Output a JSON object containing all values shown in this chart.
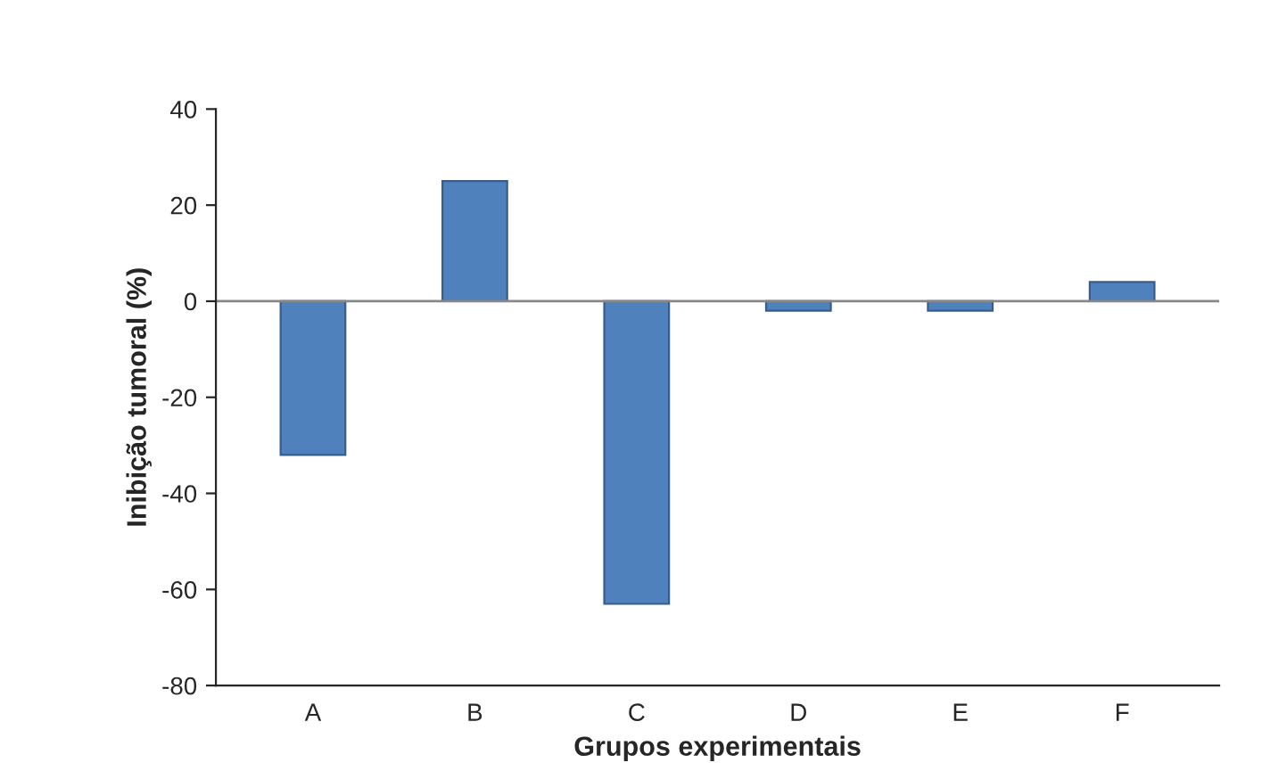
{
  "chart_data": {
    "type": "bar",
    "xlabel": "Grupos experimentais",
    "ylabel": "Inibição tumoral (%)",
    "categories": [
      "A",
      "B",
      "C",
      "D",
      "E",
      "F"
    ],
    "values": [
      -32,
      25,
      -63,
      -2,
      -2,
      4
    ],
    "color": "#4f81bd",
    "ylim": [
      -80,
      40
    ],
    "yticks": [
      -80,
      -60,
      -40,
      -20,
      0,
      20,
      40
    ],
    "ref_lines": [
      {
        "axis": "y",
        "value": 0,
        "color": "#888888"
      }
    ]
  }
}
